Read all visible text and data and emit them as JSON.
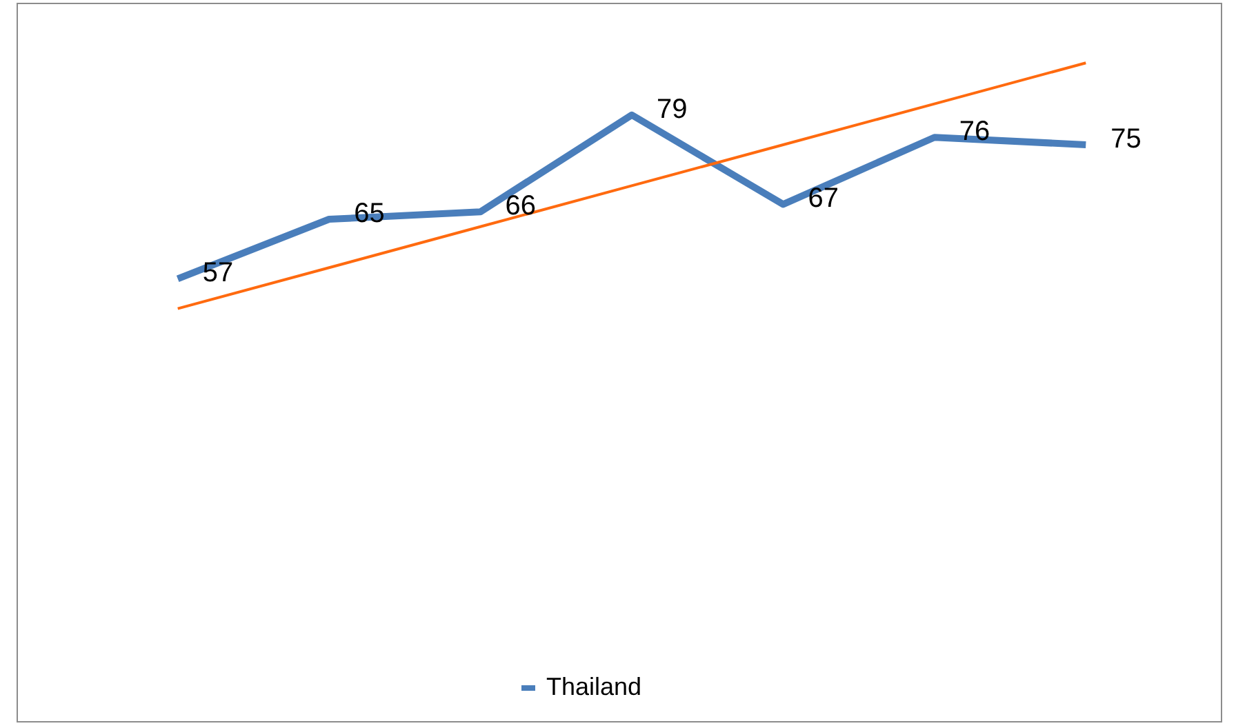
{
  "chart_data": {
    "type": "line",
    "categories": [
      null,
      null,
      null,
      null,
      null,
      null,
      null
    ],
    "legend": "bottom",
    "marker": "none",
    "series": [
      {
        "name": "Thailand",
        "color": "#4a7ebb",
        "values": [
          57,
          65,
          66,
          79,
          67,
          76,
          75
        ],
        "value_labels": [
          "57",
          "65",
          "66",
          "79",
          "67",
          "76",
          "75"
        ]
      },
      {
        "type": "line",
        "color": "#ff6a0f",
        "values": [
          53,
          58.5,
          64,
          69.5,
          75,
          80.5,
          86
        ]
      }
    ]
  }
}
